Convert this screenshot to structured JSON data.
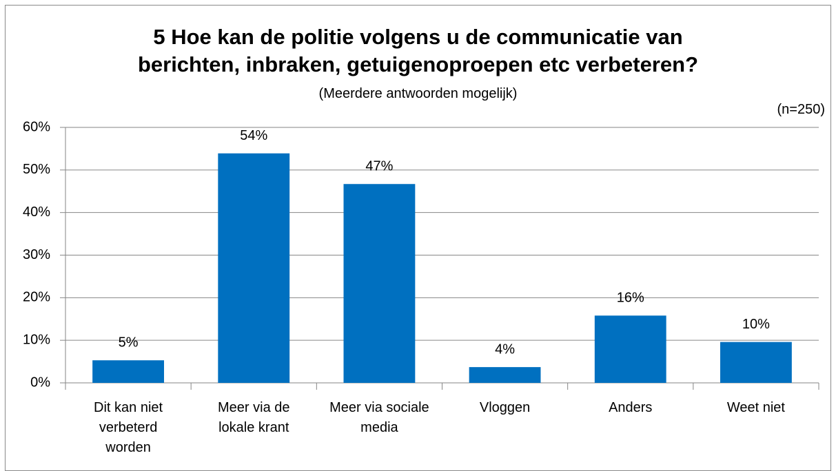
{
  "chart_data": {
    "type": "bar",
    "title": "5 Hoe kan de politie volgens u de communicatie van\nberichten, inbraken, getuigenoproepen etc verbeteren?",
    "subtitle": "(Meerdere antwoorden mogelijk)",
    "annotation": "(n=250)",
    "categories": [
      "Dit kan niet\nverbeterd\nworden",
      "Meer via de\nlokale krant",
      "Meer via sociale\nmedia",
      "Vloggen",
      "Anders",
      "Weet niet"
    ],
    "values": [
      5.3,
      53.9,
      46.7,
      3.7,
      15.8,
      9.6
    ],
    "value_labels": [
      "5%",
      "54%",
      "47%",
      "4%",
      "16%",
      "10%"
    ],
    "color": "#0070c0",
    "ylim": [
      0,
      60
    ],
    "yticks": [
      {
        "value": 0,
        "label": "0%"
      },
      {
        "value": 10,
        "label": "10%"
      },
      {
        "value": 20,
        "label": "20%"
      },
      {
        "value": 30,
        "label": "30%"
      },
      {
        "value": 40,
        "label": "40%"
      },
      {
        "value": 50,
        "label": "50%"
      },
      {
        "value": 60,
        "label": "60%"
      }
    ],
    "grid": true
  }
}
